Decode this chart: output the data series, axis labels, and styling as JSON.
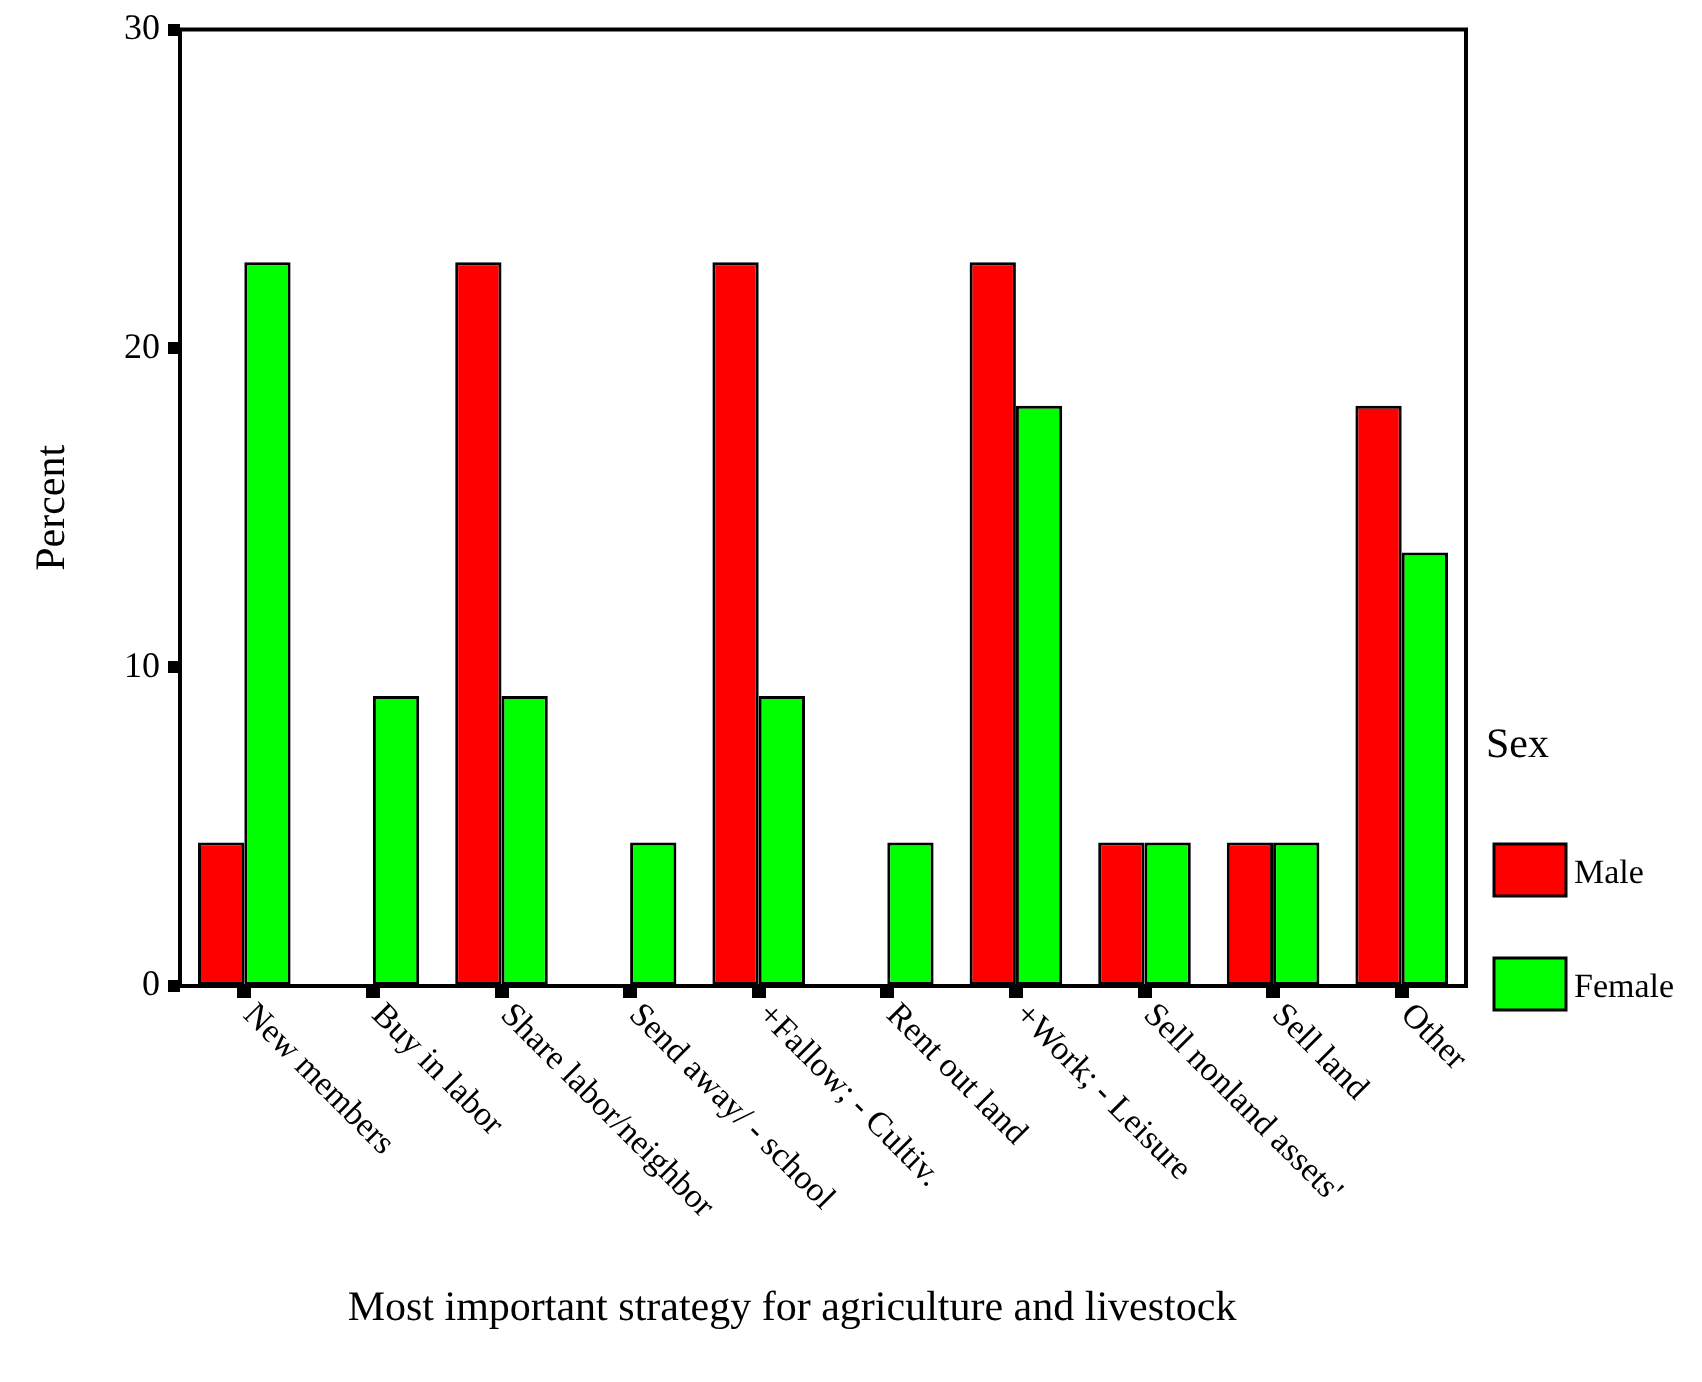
{
  "chart_data": {
    "type": "bar",
    "xlabel": "Most important strategy for agriculture and livestock",
    "ylabel": "Percent",
    "legend_title": "Sex",
    "categories": [
      "New members",
      "Buy in labor",
      "Share labor/neighbor",
      "Send away/ - school",
      "+Fallow; - Cultiv.",
      "Rent out land",
      "+Work; - Leisure",
      "Sell nonland assets'",
      "Sell land",
      "Other"
    ],
    "series": [
      {
        "name": "Male",
        "color": "#ff0000",
        "values": [
          4.5,
          0,
          22.7,
          0,
          22.7,
          0,
          22.7,
          4.5,
          4.5,
          18.2
        ]
      },
      {
        "name": "Female",
        "color": "#00ff00",
        "values": [
          22.7,
          9.1,
          9.1,
          4.5,
          9.1,
          4.5,
          18.2,
          4.5,
          4.5,
          13.6
        ]
      }
    ],
    "ylim": [
      0,
      30
    ],
    "yticks": [
      0,
      10,
      20,
      30
    ],
    "grid": false,
    "legend": "bottom right"
  }
}
